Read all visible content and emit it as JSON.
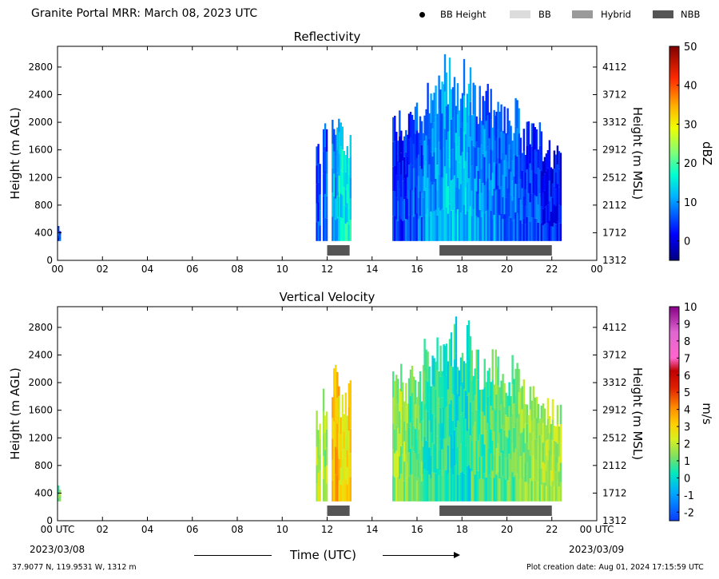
{
  "header": {
    "title": "Granite Portal MRR:  March 08, 2023 UTC",
    "legend": [
      {
        "label": "BB Height",
        "marker": "dot",
        "color": "#000000"
      },
      {
        "label": "BB",
        "marker": "rect",
        "color": "#dcdcdc"
      },
      {
        "label": "Hybrid",
        "marker": "rect",
        "color": "#9a9a9a"
      },
      {
        "label": "NBB",
        "marker": "rect",
        "color": "#555555"
      }
    ]
  },
  "footer": {
    "location": "37.9077 N, 119.9531 W, 1312 m",
    "created": "Plot creation date: Aug 01, 2024 17:15:59 UTC",
    "start_date": "2023/03/08",
    "end_date": "2023/03/09",
    "time_label": "Time (UTC)"
  },
  "chart_data": [
    {
      "type": "heatmap",
      "title": "Reflectivity",
      "ylabel": "Height (m AGL)",
      "ylabel_right": "Height (m MSL)",
      "x_ticks": [
        "00",
        "02",
        "04",
        "06",
        "08",
        "10",
        "12",
        "14",
        "16",
        "18",
        "20",
        "22",
        "00"
      ],
      "xlim": [
        0,
        24
      ],
      "ylim": [
        0,
        3100
      ],
      "y_ticks": [
        0,
        400,
        800,
        1200,
        1600,
        2000,
        2400,
        2800
      ],
      "y_ticks_right": [
        "1312",
        "1712",
        "2112",
        "2512",
        "2912",
        "3312",
        "3712",
        "4112"
      ],
      "colorbar": {
        "label": "dBZ",
        "ticks": [
          "50",
          "40",
          "30",
          "20",
          "10",
          "0"
        ],
        "range": [
          -5,
          50
        ]
      },
      "echo_segments": [
        {
          "x_start": 0.0,
          "x_end": 0.1,
          "top": 550,
          "value": 5
        },
        {
          "x_start": 11.5,
          "x_end": 11.7,
          "top": 1750,
          "value": 6
        },
        {
          "x_start": 11.8,
          "x_end": 12.0,
          "top": 2000,
          "value": 8
        },
        {
          "x_start": 12.2,
          "x_end": 12.5,
          "top": 2300,
          "value": 12
        },
        {
          "x_start": 12.5,
          "x_end": 13.0,
          "top": 2050,
          "value": 16
        },
        {
          "x_start": 14.9,
          "x_end": 15.6,
          "top": 2300,
          "value": 5
        },
        {
          "x_start": 15.6,
          "x_end": 16.3,
          "top": 2300,
          "value": 7
        },
        {
          "x_start": 16.3,
          "x_end": 17.2,
          "top": 2700,
          "value": 11
        },
        {
          "x_start": 17.2,
          "x_end": 18.4,
          "top": 3000,
          "value": 13
        },
        {
          "x_start": 18.4,
          "x_end": 19.5,
          "top": 2600,
          "value": 10
        },
        {
          "x_start": 19.5,
          "x_end": 20.5,
          "top": 2400,
          "value": 8
        },
        {
          "x_start": 20.5,
          "x_end": 21.5,
          "top": 2050,
          "value": 6
        },
        {
          "x_start": 21.5,
          "x_end": 22.4,
          "top": 1800,
          "value": 4
        }
      ],
      "echo_base": 280,
      "nbb_bars": [
        {
          "x_start": 12.0,
          "x_end": 13.0
        },
        {
          "x_start": 17.0,
          "x_end": 22.0
        }
      ]
    },
    {
      "type": "heatmap",
      "title": "Vertical Velocity",
      "ylabel": "Height (m AGL)",
      "ylabel_right": "Height (m MSL)",
      "x_ticks": [
        "00 UTC",
        "02",
        "04",
        "06",
        "08",
        "10",
        "12",
        "14",
        "16",
        "18",
        "20",
        "22",
        "00 UTC"
      ],
      "xlim": [
        0,
        24
      ],
      "ylim": [
        0,
        3100
      ],
      "y_ticks": [
        0,
        400,
        800,
        1200,
        1600,
        2000,
        2400,
        2800
      ],
      "y_ticks_right": [
        "1312",
        "1712",
        "2112",
        "2512",
        "2912",
        "3312",
        "3712",
        "4112"
      ],
      "colorbar": {
        "label": "m/s",
        "ticks": [
          "10",
          "9",
          "8",
          "7",
          "6",
          "5",
          "4",
          "3",
          "2",
          "1",
          "0",
          "-1",
          "-2"
        ],
        "range": [
          -2.5,
          10
        ]
      },
      "echo_segments": [
        {
          "x_start": 0.0,
          "x_end": 0.1,
          "top": 600,
          "value": 1.2
        },
        {
          "x_start": 11.5,
          "x_end": 11.7,
          "top": 1750,
          "value": 2.0
        },
        {
          "x_start": 11.8,
          "x_end": 12.0,
          "top": 2000,
          "value": 1.6
        },
        {
          "x_start": 12.2,
          "x_end": 12.5,
          "top": 2300,
          "value": 3.5
        },
        {
          "x_start": 12.5,
          "x_end": 13.0,
          "top": 2050,
          "value": 2.8
        },
        {
          "x_start": 14.9,
          "x_end": 15.6,
          "top": 2300,
          "value": 1.5
        },
        {
          "x_start": 15.6,
          "x_end": 16.3,
          "top": 2300,
          "value": 1.0
        },
        {
          "x_start": 16.3,
          "x_end": 17.2,
          "top": 2700,
          "value": 0.5
        },
        {
          "x_start": 17.2,
          "x_end": 18.4,
          "top": 3000,
          "value": 0.3
        },
        {
          "x_start": 18.4,
          "x_end": 19.5,
          "top": 2600,
          "value": 0.8
        },
        {
          "x_start": 19.5,
          "x_end": 20.5,
          "top": 2400,
          "value": 1.0
        },
        {
          "x_start": 20.5,
          "x_end": 21.5,
          "top": 2050,
          "value": 1.4
        },
        {
          "x_start": 21.5,
          "x_end": 22.4,
          "top": 1800,
          "value": 1.8
        }
      ],
      "echo_base": 280,
      "nbb_bars": [
        {
          "x_start": 12.0,
          "x_end": 13.0
        },
        {
          "x_start": 17.0,
          "x_end": 22.0
        }
      ]
    }
  ]
}
